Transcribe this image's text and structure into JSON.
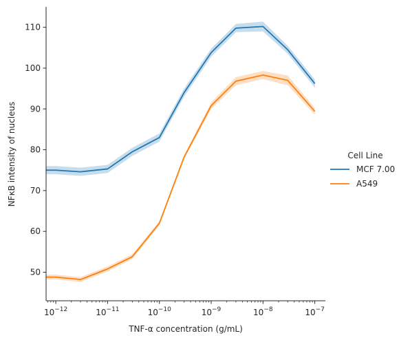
{
  "chart_data": {
    "type": "line",
    "xlabel": "TNF-α concentration (g/mL)",
    "ylabel": "NFκB intensity of nucleus",
    "x_scale": "log",
    "xlim": [
      6.5e-13,
      1.6e-07
    ],
    "ylim": [
      43,
      115
    ],
    "x_ticks": [
      {
        "value": 1e-12,
        "label": "10",
        "exp": "−12"
      },
      {
        "value": 1e-11,
        "label": "10",
        "exp": "−11"
      },
      {
        "value": 1e-10,
        "label": "10",
        "exp": "−10"
      },
      {
        "value": 1e-09,
        "label": "10",
        "exp": "−9"
      },
      {
        "value": 1e-08,
        "label": "10",
        "exp": "−8"
      },
      {
        "value": 1e-07,
        "label": "10",
        "exp": "−7"
      }
    ],
    "y_ticks": [
      50,
      60,
      70,
      80,
      90,
      100,
      110
    ],
    "grid": false,
    "legend": {
      "title": "Cell Line",
      "placement": "right",
      "entries": [
        "MCF 7.00",
        "A549"
      ]
    },
    "x": [
      6.5e-13,
      1e-12,
      3e-12,
      1e-11,
      3e-11,
      1e-10,
      3e-10,
      1e-09,
      3e-09,
      1e-08,
      3e-08,
      1e-07
    ],
    "series": [
      {
        "name": "MCF 7.00",
        "color": "#1f77b4",
        "values": [
          75.0,
          75.0,
          74.6,
          75.3,
          79.5,
          83.0,
          94.0,
          103.8,
          109.8,
          110.2,
          104.5,
          96.2
        ],
        "ci_low": [
          74.0,
          74.0,
          73.6,
          74.3,
          78.5,
          82.0,
          93.0,
          102.8,
          108.8,
          109.0,
          103.5,
          95.2
        ],
        "ci_high": [
          76.0,
          76.0,
          75.6,
          76.3,
          80.5,
          84.0,
          95.0,
          104.8,
          110.8,
          111.4,
          105.5,
          97.2
        ]
      },
      {
        "name": "A549",
        "color": "#ff7f0e",
        "values": [
          48.8,
          48.8,
          48.2,
          50.8,
          53.8,
          62.0,
          78.2,
          90.8,
          96.8,
          98.3,
          97.0,
          89.4
        ],
        "ci_low": [
          48.2,
          48.2,
          47.6,
          50.2,
          53.2,
          61.5,
          77.7,
          90.0,
          95.8,
          97.3,
          95.8,
          88.6
        ],
        "ci_high": [
          49.4,
          49.4,
          48.8,
          51.4,
          54.4,
          62.5,
          78.7,
          91.6,
          97.8,
          99.3,
          98.2,
          90.2
        ]
      }
    ]
  }
}
